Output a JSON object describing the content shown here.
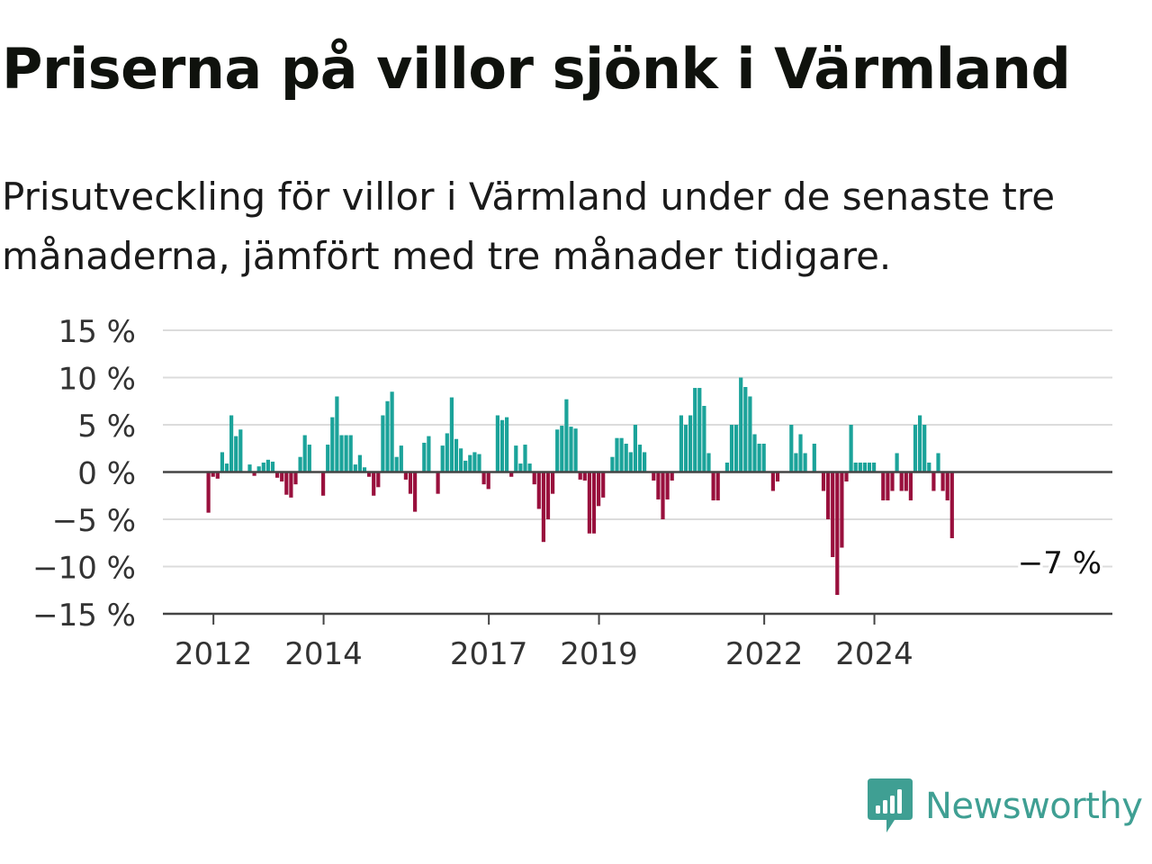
{
  "title": "Priserna på villor sjönk i Värmland",
  "subtitle": "Prisutveckling för villor i Värmland under de senaste tre månaderna, jämfört med tre månader tidigare.",
  "brand": {
    "name": "Newsworthy",
    "icon": "newsworthy-logo-icon"
  },
  "colors": {
    "positive": "#1ba39a",
    "negative": "#99103d",
    "grid": "#dcdcdc",
    "axis": "#444444"
  },
  "chart_data": {
    "type": "bar",
    "title": "",
    "xlabel": "",
    "ylabel": "",
    "ylim": [
      -15,
      15
    ],
    "yticks": [
      15,
      10,
      5,
      0,
      -5,
      -10,
      -15
    ],
    "ytick_labels": [
      "15 %",
      "10 %",
      "5 %",
      "0 %",
      "−5 %",
      "−10 %",
      "−15 %"
    ],
    "xticks": [
      {
        "year": 2012,
        "label": "2012"
      },
      {
        "year": 2014,
        "label": "2014"
      },
      {
        "year": 2017,
        "label": "2017"
      },
      {
        "year": 2019,
        "label": "2019"
      },
      {
        "year": 2022,
        "label": "2022"
      },
      {
        "year": 2024,
        "label": "2024"
      }
    ],
    "x_start": "2011-12",
    "grid": true,
    "annotation": {
      "text": "−7 %",
      "value": -7
    },
    "values": [
      -4.3,
      -0.5,
      -0.7,
      2.1,
      0.9,
      6.0,
      3.8,
      4.5,
      0,
      0.8,
      -0.4,
      0.6,
      1.0,
      1.3,
      1.1,
      -0.6,
      -1.0,
      -2.4,
      -2.7,
      -1.3,
      1.6,
      3.9,
      2.9,
      0,
      0,
      -2.5,
      2.9,
      5.8,
      8.0,
      3.9,
      3.9,
      3.9,
      0.8,
      1.8,
      0.5,
      -0.5,
      -2.5,
      -1.6,
      6.0,
      7.5,
      8.5,
      1.6,
      2.8,
      -0.8,
      -2.3,
      -4.2,
      0,
      3.1,
      3.8,
      0,
      -2.3,
      2.8,
      4.1,
      7.9,
      3.5,
      2.5,
      1.2,
      1.8,
      2.1,
      1.9,
      -1.3,
      -1.8,
      0,
      6.0,
      5.5,
      5.8,
      -0.5,
      2.8,
      0.9,
      2.9,
      0.9,
      -1.3,
      -3.9,
      -7.4,
      -5.0,
      -2.3,
      4.5,
      4.9,
      7.7,
      4.8,
      4.6,
      -0.8,
      -0.9,
      -6.5,
      -6.5,
      -3.6,
      -2.7,
      0,
      1.6,
      3.6,
      3.6,
      3.0,
      2.1,
      5.0,
      2.9,
      2.1,
      0,
      -0.9,
      -2.9,
      -5.0,
      -2.9,
      -0.9,
      0,
      6.0,
      5.0,
      6.0,
      8.9,
      8.9,
      7.0,
      2.0,
      -3.0,
      -3.0,
      0,
      1.0,
      5.0,
      5.0,
      10.0,
      9.0,
      8.0,
      4.0,
      3.0,
      3.0,
      0,
      -2.0,
      -1.0,
      0,
      0,
      5.0,
      2.0,
      4.0,
      2.0,
      0,
      3.0,
      0,
      -2.0,
      -5.0,
      -9.0,
      -13.0,
      -8.0,
      -1.0,
      5.0,
      1.0,
      1.0,
      1.0,
      1.0,
      1.0,
      0,
      -3.0,
      -3.0,
      -2.0,
      2.0,
      -2.0,
      -2.0,
      -3.0,
      5.0,
      6.0,
      5.0,
      1.0,
      -2.0,
      2.0,
      -2.0,
      -3.0,
      -7.0
    ]
  }
}
